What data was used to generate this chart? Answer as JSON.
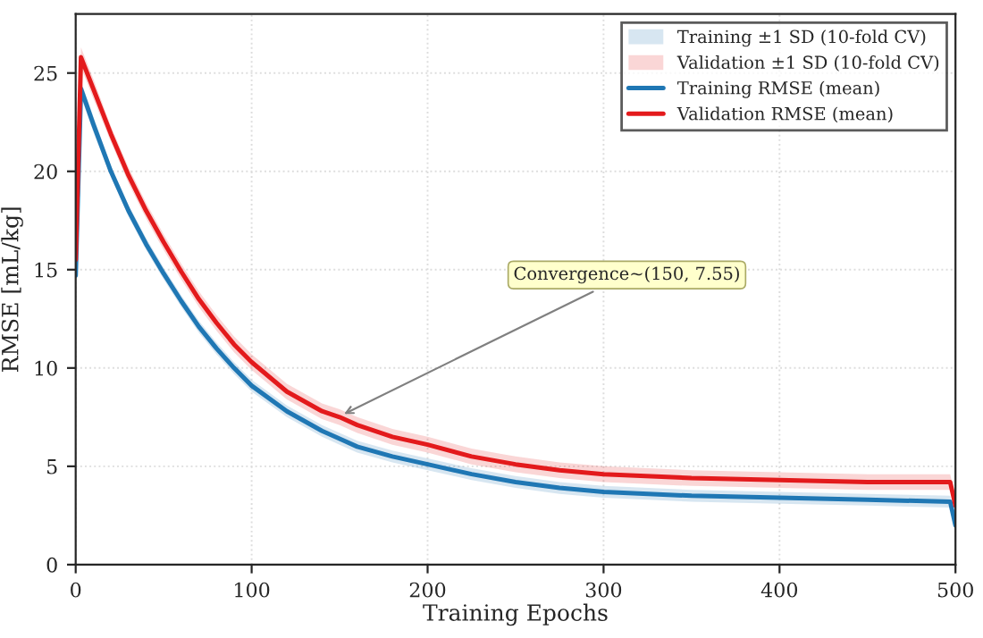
{
  "chart_data": {
    "type": "line",
    "xlabel": "Training Epochs",
    "ylabel": "RMSE [mL/kg]",
    "x": [
      0,
      3,
      10,
      20,
      30,
      40,
      50,
      60,
      70,
      80,
      90,
      100,
      120,
      140,
      150,
      160,
      180,
      200,
      225,
      250,
      275,
      300,
      350,
      400,
      450,
      497,
      500
    ],
    "series": [
      {
        "name": "Training RMSE (mean)",
        "color": "#1f77b4",
        "values": [
          14.7,
          24.2,
          22.4,
          20.0,
          18.0,
          16.3,
          14.8,
          13.4,
          12.1,
          11.0,
          10.0,
          9.1,
          7.8,
          6.8,
          6.4,
          6.0,
          5.5,
          5.1,
          4.6,
          4.2,
          3.9,
          3.7,
          3.5,
          3.4,
          3.3,
          3.2,
          2.0
        ],
        "lower": [
          14.4,
          23.8,
          22.0,
          19.7,
          17.7,
          16.0,
          14.5,
          13.1,
          11.8,
          10.7,
          9.7,
          8.8,
          7.5,
          6.5,
          6.1,
          5.7,
          5.2,
          4.8,
          4.3,
          3.9,
          3.6,
          3.4,
          3.2,
          3.1,
          3.0,
          2.9,
          1.7
        ],
        "upper": [
          15.0,
          24.6,
          22.8,
          20.3,
          18.3,
          16.6,
          15.1,
          13.7,
          12.4,
          11.3,
          10.3,
          9.4,
          8.1,
          7.1,
          6.7,
          6.3,
          5.8,
          5.4,
          4.9,
          4.5,
          4.2,
          4.0,
          3.8,
          3.7,
          3.6,
          3.5,
          2.3
        ]
      },
      {
        "name": "Validation RMSE (mean)",
        "color": "#e31a1c",
        "values": [
          15.5,
          25.8,
          24.2,
          21.9,
          19.8,
          18.0,
          16.4,
          14.9,
          13.5,
          12.3,
          11.2,
          10.3,
          8.8,
          7.8,
          7.5,
          7.1,
          6.5,
          6.1,
          5.5,
          5.1,
          4.8,
          4.6,
          4.4,
          4.3,
          4.2,
          4.2,
          3.0
        ],
        "lower": [
          15.1,
          25.3,
          23.7,
          21.5,
          19.4,
          17.6,
          16.0,
          14.5,
          13.1,
          11.9,
          10.8,
          9.9,
          8.4,
          7.4,
          7.1,
          6.7,
          6.1,
          5.7,
          5.1,
          4.7,
          4.4,
          4.2,
          4.0,
          3.9,
          3.8,
          3.8,
          2.6
        ],
        "upper": [
          15.9,
          26.3,
          24.7,
          22.3,
          20.2,
          18.4,
          16.8,
          15.3,
          13.9,
          12.7,
          11.6,
          10.7,
          9.2,
          8.2,
          7.9,
          7.5,
          6.9,
          6.5,
          5.9,
          5.5,
          5.2,
          5.0,
          4.8,
          4.7,
          4.6,
          4.6,
          3.4
        ]
      }
    ],
    "annotations": [
      "Training ±1 SD (10-fold CV)",
      "Validation ±1 SD (10-fold CV)",
      {
        "text": "Convergence~(150, 7.55)",
        "x": 150,
        "y": 7.55
      }
    ],
    "xlim": [
      0,
      500
    ],
    "ylim": [
      0,
      28
    ],
    "xticks": [
      0,
      100,
      200,
      300,
      400,
      500
    ],
    "yticks": [
      0,
      5,
      10,
      15,
      20,
      25
    ],
    "grid": true,
    "legend": "top right",
    "line_style": "solid",
    "marker": "none"
  }
}
